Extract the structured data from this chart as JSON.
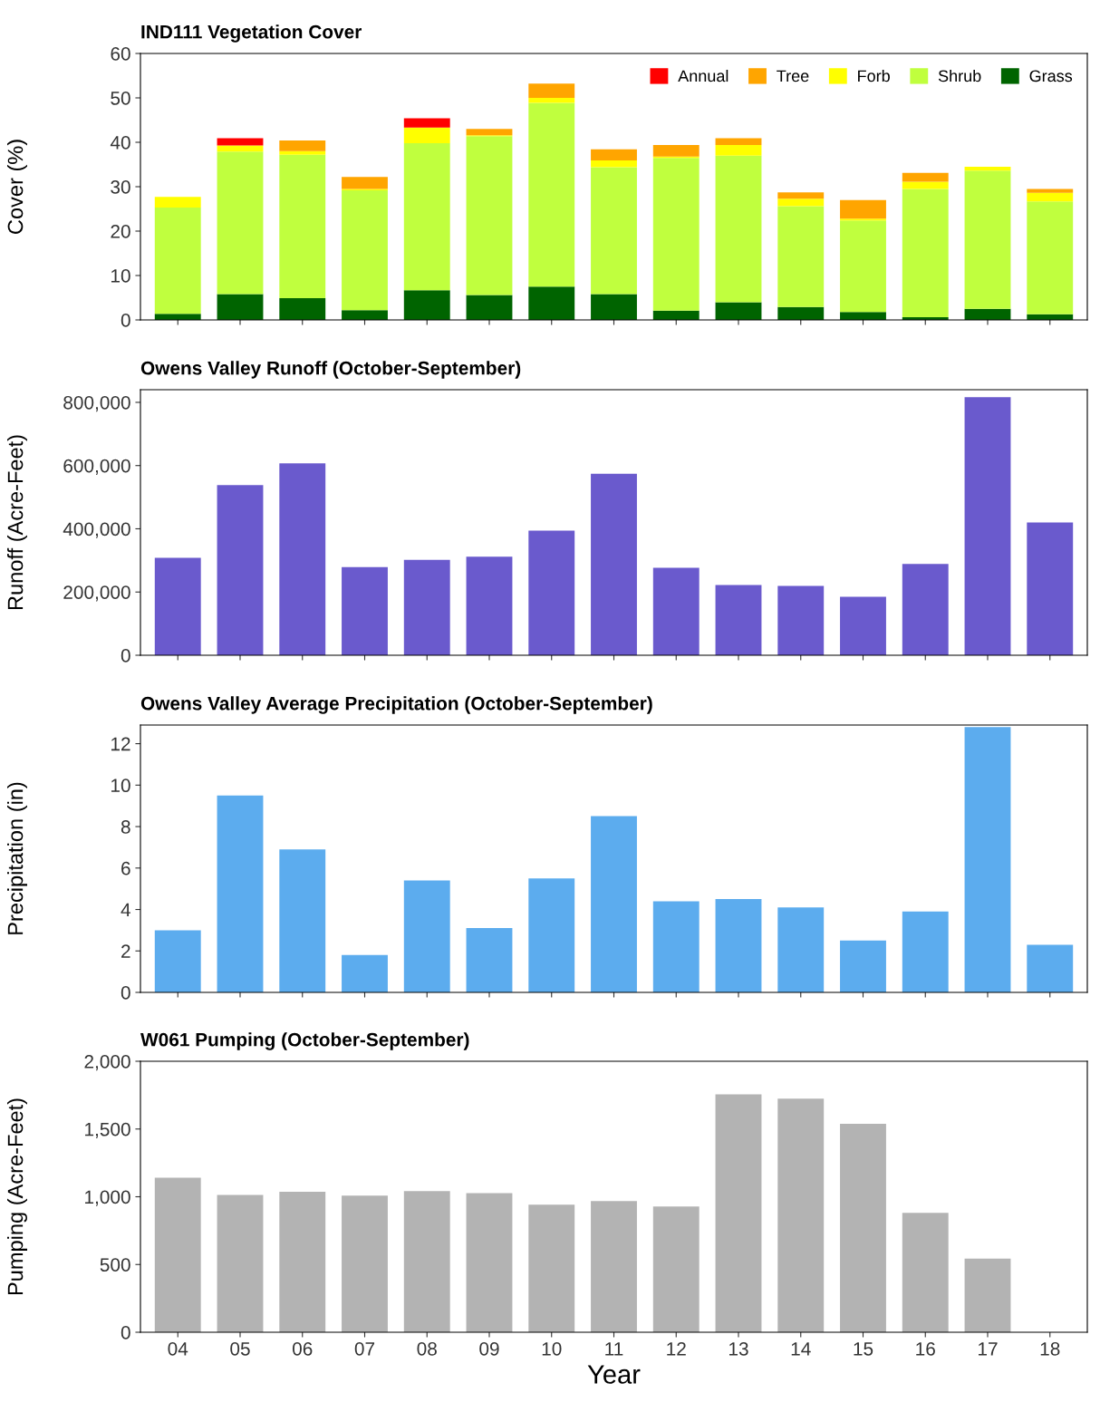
{
  "chart_data": [
    {
      "type": "bar",
      "title": "IND111 Vegetation Cover",
      "ylabel": "Cover (%)",
      "stacked": true,
      "legend": "top right",
      "tick_labels": "y",
      "grid": false,
      "categories": [
        "04",
        "05",
        "06",
        "07",
        "08",
        "09",
        "10",
        "11",
        "12",
        "13",
        "14",
        "15",
        "16",
        "17",
        "18"
      ],
      "ylim": [
        0,
        60
      ],
      "yticks": [
        0,
        10,
        20,
        30,
        40,
        50,
        60
      ],
      "series": [
        {
          "name": "Grass",
          "color": "#006400",
          "values": [
            1.4,
            5.8,
            4.9,
            2.2,
            6.7,
            5.6,
            7.5,
            5.8,
            2.1,
            4.0,
            2.9,
            1.8,
            0.6,
            2.5,
            1.3
          ]
        },
        {
          "name": "Shrub",
          "color": "#c0ff3e",
          "values": [
            23.9,
            32.1,
            32.3,
            27.0,
            33.1,
            35.8,
            41.4,
            28.6,
            34.4,
            33.0,
            22.7,
            20.6,
            28.9,
            31.1,
            25.4
          ]
        },
        {
          "name": "Forb",
          "color": "#ffff00",
          "values": [
            2.4,
            1.4,
            0.8,
            0.3,
            3.5,
            0.2,
            1.1,
            1.5,
            0.3,
            2.4,
            1.7,
            0.4,
            1.6,
            0.9,
            1.9
          ]
        },
        {
          "name": "Tree",
          "color": "#ffa500",
          "values": [
            0,
            0,
            2.4,
            2.7,
            0,
            1.4,
            3.2,
            2.5,
            2.6,
            1.5,
            1.4,
            4.2,
            2.0,
            0,
            0.9
          ]
        },
        {
          "name": "Annual",
          "color": "#ff0000",
          "values": [
            0,
            1.6,
            0,
            0,
            2.1,
            0,
            0,
            0,
            0,
            0,
            0,
            0,
            0,
            0,
            0
          ]
        }
      ]
    },
    {
      "type": "bar",
      "title": "Owens Valley Runoff (October-September)",
      "ylabel": "Runoff (Acre-Feet)",
      "tick_labels": "y",
      "grid": false,
      "categories": [
        "04",
        "05",
        "06",
        "07",
        "08",
        "09",
        "10",
        "11",
        "12",
        "13",
        "14",
        "15",
        "16",
        "17",
        "18"
      ],
      "ylim": [
        0,
        840000
      ],
      "yticks": [
        0,
        {
          "value": 200000,
          "label": "200,000"
        },
        {
          "value": 400000,
          "label": "400,000"
        },
        {
          "value": 600000,
          "label": "600,000"
        },
        {
          "value": 800000,
          "label": "800,000"
        }
      ],
      "series": [
        {
          "color": "#6a5acd",
          "values": [
            308000,
            538000,
            607000,
            279000,
            302000,
            312000,
            394000,
            574000,
            277000,
            222000,
            219000,
            185000,
            289000,
            816000,
            420000
          ]
        }
      ]
    },
    {
      "type": "bar",
      "title": "Owens Valley Average Precipitation (October-September)",
      "ylabel": "Precipitation (in)",
      "tick_labels": "y",
      "grid": false,
      "categories": [
        "04",
        "05",
        "06",
        "07",
        "08",
        "09",
        "10",
        "11",
        "12",
        "13",
        "14",
        "15",
        "16",
        "17",
        "18"
      ],
      "ylim": [
        0,
        12.9
      ],
      "yticks": [
        0,
        2,
        4,
        6,
        8,
        10,
        12
      ],
      "series": [
        {
          "color": "#5cacee",
          "values": [
            3.0,
            9.5,
            6.9,
            1.8,
            5.4,
            3.1,
            5.5,
            8.5,
            4.4,
            4.5,
            4.1,
            2.5,
            3.9,
            12.8,
            2.3
          ]
        }
      ]
    },
    {
      "type": "bar",
      "title": "W061 Pumping (October-September)",
      "ylabel": "Pumping (Acre-Feet)",
      "xlabel": "Year",
      "grid": false,
      "categories": [
        "04",
        "05",
        "06",
        "07",
        "08",
        "09",
        "10",
        "11",
        "12",
        "13",
        "14",
        "15",
        "16",
        "17",
        "18"
      ],
      "ylim": [
        0,
        2000
      ],
      "yticks": [
        0,
        500,
        {
          "value": 1000,
          "label": "1,000"
        },
        {
          "value": 1500,
          "label": "1,500"
        },
        {
          "value": 2000,
          "label": "2,000"
        }
      ],
      "series": [
        {
          "color": "#b3b3b3",
          "values": [
            1140,
            1014,
            1036,
            1009,
            1041,
            1027,
            941,
            968,
            928,
            1756,
            1724,
            1538,
            882,
            543,
            null
          ]
        }
      ]
    }
  ]
}
